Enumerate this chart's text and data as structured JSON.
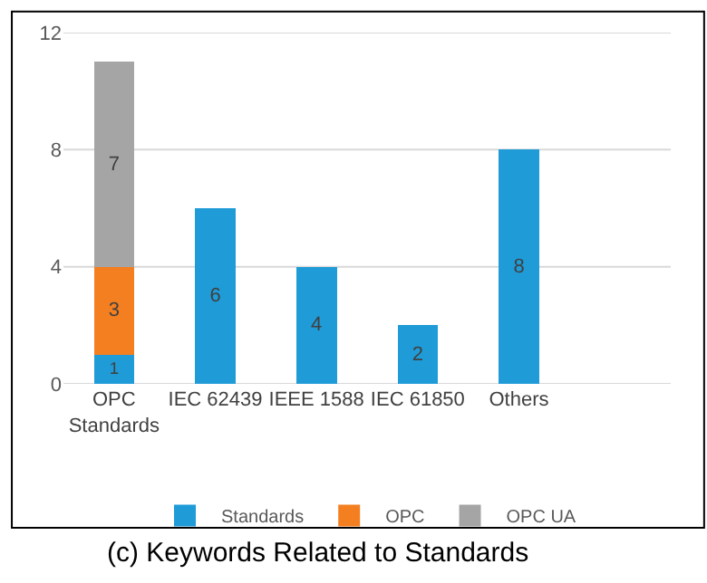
{
  "chart_data": {
    "type": "bar",
    "title": "(c) Keywords Related to Standards",
    "categories": [
      "OPC Standards",
      "IEC 62439",
      "IEEE 1588",
      "IEC 61850",
      "Others"
    ],
    "series": [
      {
        "name": "Standards",
        "color": "#1f9bd7",
        "values": [
          1,
          6,
          4,
          2,
          8
        ]
      },
      {
        "name": "OPC",
        "color": "#f47f20",
        "values": [
          3,
          null,
          null,
          null,
          null
        ]
      },
      {
        "name": "OPC UA",
        "color": "#a5a5a5",
        "values": [
          7,
          null,
          null,
          null,
          null
        ]
      }
    ],
    "stacked": true,
    "ylim": [
      0,
      12
    ],
    "yticks": [
      0,
      4,
      8,
      12
    ],
    "grid": "y",
    "legend": "bottom",
    "data_labels": true
  }
}
